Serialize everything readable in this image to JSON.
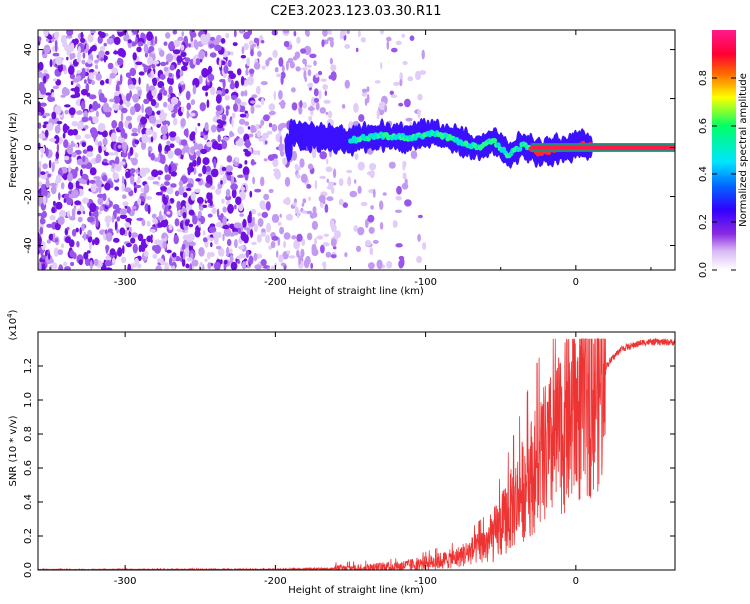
{
  "title": "C2E3.2023.123.03.30.R11",
  "chart_data": [
    {
      "type": "heatmap",
      "name": "spectrogram",
      "xlabel": "Height of straight line (km)",
      "ylabel": "Frequency (Hz)",
      "xlim": [
        -358,
        66
      ],
      "ylim": [
        -50,
        48
      ],
      "xticks": [
        -300,
        -200,
        -100,
        0
      ],
      "xtick_labels": [
        "-300",
        "-200",
        "-100",
        "0"
      ],
      "yticks": [
        40,
        20,
        0,
        -20,
        -40
      ],
      "ytick_labels": [
        "40",
        "20",
        "0",
        "-20",
        "-40"
      ],
      "colorbar": {
        "label": "Normalized spectral amplitude",
        "range": [
          0,
          1
        ],
        "ticks": [
          0.0,
          0.2,
          0.4,
          0.6,
          0.8
        ],
        "tick_labels": [
          "0.0",
          "0.2",
          "0.4",
          "0.6",
          "0.8"
        ],
        "colormap": [
          "#ffffff",
          "#d8b8f5",
          "#8a2be2",
          "#3300ff",
          "#0066ff",
          "#00e5ff",
          "#00ff66",
          "#ffff00",
          "#ff6600",
          "#ff0033",
          "#ff1a8c"
        ]
      },
      "signal_track": [
        {
          "x": -190,
          "f": 6
        },
        {
          "x": -170,
          "f": 4
        },
        {
          "x": -150,
          "f": 3
        },
        {
          "x": -130,
          "f": 5
        },
        {
          "x": -110,
          "f": 4
        },
        {
          "x": -95,
          "f": 6
        },
        {
          "x": -85,
          "f": 4
        },
        {
          "x": -75,
          "f": 2
        },
        {
          "x": -65,
          "f": 0
        },
        {
          "x": -55,
          "f": 3
        },
        {
          "x": -45,
          "f": -3
        },
        {
          "x": -35,
          "f": 1
        },
        {
          "x": -25,
          "f": -2
        },
        {
          "x": -15,
          "f": -1
        },
        {
          "x": -5,
          "f": 0
        },
        {
          "x": 5,
          "f": 1
        },
        {
          "x": 15,
          "f": 0
        },
        {
          "x": 66,
          "f": 0
        }
      ]
    },
    {
      "type": "line",
      "name": "snr",
      "xlabel": "Height of straight line (km)",
      "ylabel": "SNR (10 * v/v)",
      "y_multiplier": "(x10",
      "y_multiplier_exp": "4",
      "color": "#ee3333",
      "xlim": [
        -358,
        66
      ],
      "ylim": [
        0,
        1.4
      ],
      "xticks": [
        -300,
        -200,
        -100,
        0
      ],
      "xtick_labels": [
        "-300",
        "-200",
        "-100",
        "0"
      ],
      "yticks": [
        0.0,
        0.2,
        0.4,
        0.6,
        0.8,
        1.0,
        1.2
      ],
      "ytick_labels": [
        "0.0",
        "0.2",
        "0.4",
        "0.6",
        "0.8",
        "1.0",
        "1.2"
      ],
      "trend": [
        {
          "x": -358,
          "y": 0.0
        },
        {
          "x": -200,
          "y": 0.002
        },
        {
          "x": -150,
          "y": 0.01
        },
        {
          "x": -120,
          "y": 0.02
        },
        {
          "x": -100,
          "y": 0.04
        },
        {
          "x": -80,
          "y": 0.07
        },
        {
          "x": -60,
          "y": 0.15
        },
        {
          "x": -50,
          "y": 0.25
        },
        {
          "x": -40,
          "y": 0.4
        },
        {
          "x": -30,
          "y": 0.55
        },
        {
          "x": -20,
          "y": 0.68
        },
        {
          "x": -10,
          "y": 0.8
        },
        {
          "x": 0,
          "y": 0.92
        },
        {
          "x": 10,
          "y": 1.05
        },
        {
          "x": 20,
          "y": 1.2
        },
        {
          "x": 30,
          "y": 1.3
        },
        {
          "x": 45,
          "y": 1.34
        },
        {
          "x": 66,
          "y": 1.34
        }
      ]
    }
  ]
}
